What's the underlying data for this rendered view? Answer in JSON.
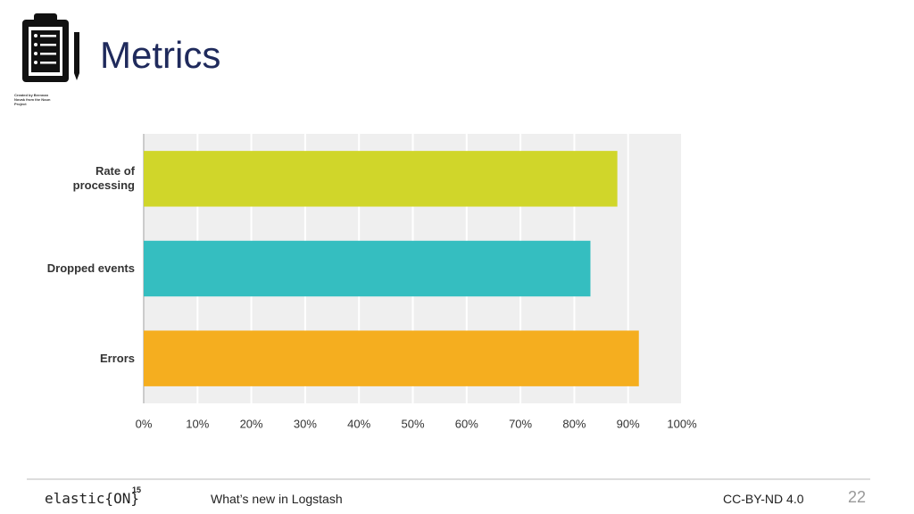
{
  "slide": {
    "title": "Metrics",
    "icon_credit": "Created by Brennan Novak from the Noun Project",
    "brand": "elastic{ON}",
    "brand_sup": "15",
    "footer_title": "What’s new in Logstash",
    "license": "CC-BY-ND 4.0",
    "page_number": "22"
  },
  "chart_data": {
    "type": "hbar",
    "categories": [
      "Rate of processing",
      "Dropped events",
      "Errors"
    ],
    "values": [
      88,
      83,
      92
    ],
    "colors": [
      "#d0d62a",
      "#35bec0",
      "#f5ae1f"
    ],
    "xlim": [
      0,
      100
    ],
    "xticks": [
      {
        "value": 0,
        "label": "0%"
      },
      {
        "value": 10,
        "label": "10%"
      },
      {
        "value": 20,
        "label": "20%"
      },
      {
        "value": 30,
        "label": "30%"
      },
      {
        "value": 40,
        "label": "40%"
      },
      {
        "value": 50,
        "label": "50%"
      },
      {
        "value": 60,
        "label": "60%"
      },
      {
        "value": 70,
        "label": "70%"
      },
      {
        "value": 80,
        "label": "80%"
      },
      {
        "value": 90,
        "label": "90%"
      },
      {
        "value": 100,
        "label": "100%"
      }
    ],
    "grid": true
  }
}
